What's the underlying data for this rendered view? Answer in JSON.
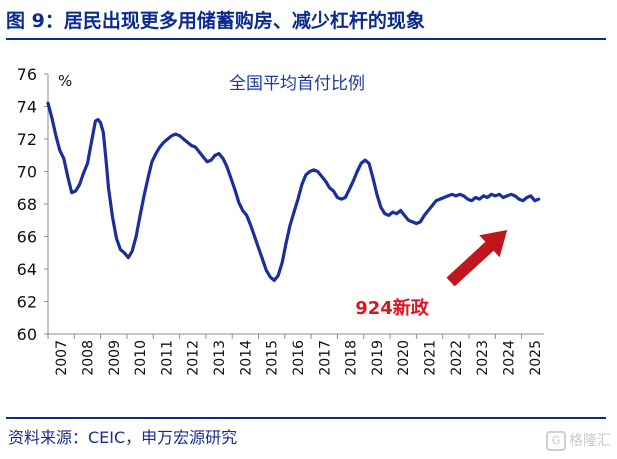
{
  "header": {
    "title": "图 9：居民出现更多用储蓄购房、减少杠杆的现象"
  },
  "footer": {
    "source": "资料来源：CEIC，申万宏源研究",
    "watermark": "格隆汇",
    "watermark_icon": "G"
  },
  "colors": {
    "title": "#0b2c8f",
    "line": "#1a2f9a",
    "annotation": "#e0141e",
    "arrow": "#c0161d"
  },
  "chart_data": {
    "type": "line",
    "title": "全国平均首付比例",
    "ylabel": "%",
    "xlabel": "",
    "ylim": [
      60,
      76
    ],
    "yticks": [
      60,
      62,
      64,
      66,
      68,
      70,
      72,
      74,
      76
    ],
    "xlim": [
      2007,
      2025.85
    ],
    "xticks": [
      "2007",
      "2008",
      "2009",
      "2010",
      "2011",
      "2012",
      "2013",
      "2014",
      "2015",
      "2016",
      "2017",
      "2018",
      "2019",
      "2020",
      "2021",
      "2022",
      "2023",
      "2024",
      "2025"
    ],
    "grid": false,
    "legend": "none",
    "annotation": {
      "text": "924新政",
      "arrow_from": [
        2022.3,
        63.2
      ],
      "arrow_to": [
        2024.45,
        66.4
      ]
    },
    "series": [
      {
        "name": "",
        "x": [
          2007.0,
          2007.15,
          2007.3,
          2007.45,
          2007.6,
          2007.75,
          2007.9,
          2008.05,
          2008.2,
          2008.35,
          2008.5,
          2008.65,
          2008.8,
          2008.9,
          2009.0,
          2009.1,
          2009.2,
          2009.3,
          2009.45,
          2009.6,
          2009.75,
          2009.9,
          2010.05,
          2010.2,
          2010.35,
          2010.5,
          2010.65,
          2010.8,
          2010.95,
          2011.1,
          2011.25,
          2011.4,
          2011.55,
          2011.7,
          2011.85,
          2012.0,
          2012.15,
          2012.3,
          2012.45,
          2012.6,
          2012.75,
          2012.9,
          2013.05,
          2013.2,
          2013.35,
          2013.5,
          2013.65,
          2013.8,
          2013.95,
          2014.1,
          2014.25,
          2014.4,
          2014.55,
          2014.7,
          2014.85,
          2015.0,
          2015.15,
          2015.3,
          2015.45,
          2015.6,
          2015.75,
          2015.9,
          2016.05,
          2016.2,
          2016.35,
          2016.5,
          2016.65,
          2016.8,
          2016.95,
          2017.1,
          2017.25,
          2017.4,
          2017.55,
          2017.7,
          2017.85,
          2018.0,
          2018.15,
          2018.3,
          2018.45,
          2018.6,
          2018.75,
          2018.9,
          2019.05,
          2019.2,
          2019.35,
          2019.5,
          2019.65,
          2019.8,
          2019.95,
          2020.1,
          2020.25,
          2020.4,
          2020.55,
          2020.7,
          2020.85,
          2021.0,
          2021.15,
          2021.3,
          2021.45,
          2021.6,
          2021.75,
          2021.9,
          2022.05,
          2022.2,
          2022.35,
          2022.5,
          2022.65,
          2022.8,
          2022.95,
          2023.1,
          2023.25,
          2023.4,
          2023.55,
          2023.7,
          2023.85,
          2024.0,
          2024.15,
          2024.3,
          2024.45,
          2024.6,
          2024.75,
          2024.9,
          2025.05,
          2025.2,
          2025.35,
          2025.5,
          2025.65
        ],
        "values": [
          74.2,
          73.3,
          72.2,
          71.3,
          70.8,
          69.7,
          68.7,
          68.8,
          69.2,
          69.9,
          70.5,
          71.8,
          73.1,
          73.2,
          73.0,
          72.4,
          70.8,
          69.0,
          67.2,
          65.9,
          65.2,
          65.0,
          64.7,
          65.1,
          66.0,
          67.3,
          68.5,
          69.6,
          70.6,
          71.1,
          71.5,
          71.8,
          72.0,
          72.2,
          72.3,
          72.2,
          72.0,
          71.8,
          71.6,
          71.5,
          71.2,
          70.9,
          70.6,
          70.7,
          71.0,
          71.1,
          70.8,
          70.3,
          69.6,
          68.9,
          68.1,
          67.6,
          67.3,
          66.7,
          66.0,
          65.3,
          64.6,
          63.9,
          63.5,
          63.3,
          63.6,
          64.4,
          65.6,
          66.7,
          67.5,
          68.3,
          69.2,
          69.8,
          70.0,
          70.1,
          70.0,
          69.7,
          69.4,
          69.0,
          68.8,
          68.4,
          68.3,
          68.4,
          68.9,
          69.4,
          70.0,
          70.5,
          70.7,
          70.5,
          69.6,
          68.6,
          67.8,
          67.4,
          67.3,
          67.5,
          67.4,
          67.6,
          67.3,
          67.0,
          66.9,
          66.8,
          66.9,
          67.3,
          67.6,
          67.9,
          68.2,
          68.3,
          68.4,
          68.5,
          68.6,
          68.5,
          68.6,
          68.5,
          68.3,
          68.2,
          68.4,
          68.3,
          68.5,
          68.4,
          68.6,
          68.5,
          68.6,
          68.4,
          68.5,
          68.6,
          68.5,
          68.3,
          68.2,
          68.4,
          68.5,
          68.2,
          68.3
        ]
      }
    ]
  }
}
